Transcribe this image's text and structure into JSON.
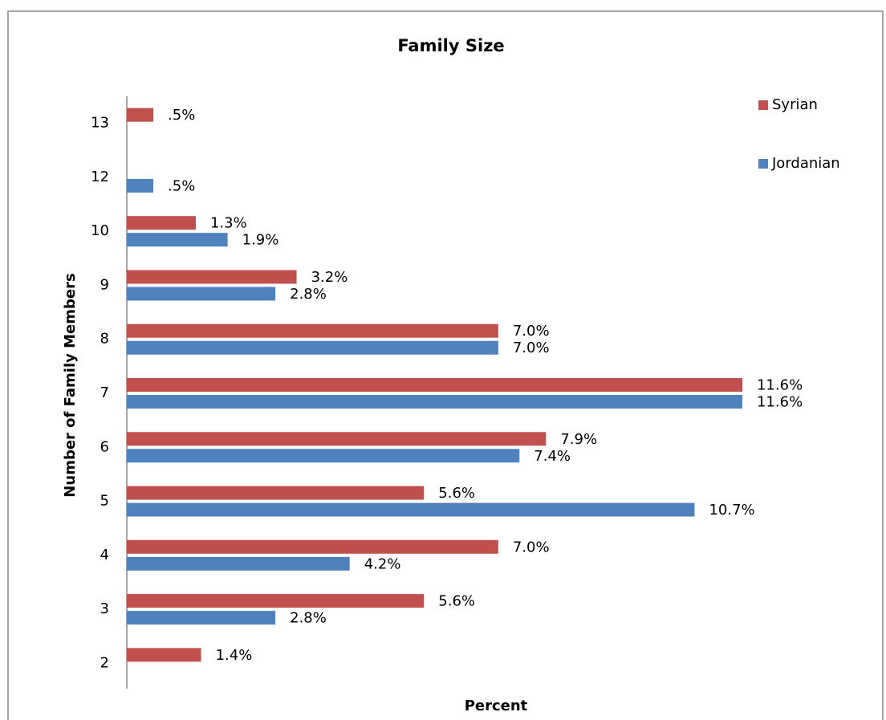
{
  "chart_data": {
    "type": "hbar",
    "title": "Family Size",
    "x_label": "Percent",
    "y_label": "Number of Family Members",
    "categories": [
      "2",
      "3",
      "4",
      "5",
      "6",
      "7",
      "8",
      "9",
      "10",
      "12",
      "13"
    ],
    "series": [
      {
        "name": "Syrian",
        "color": "#c0504d",
        "values": [
          1.4,
          5.6,
          7.0,
          5.6,
          7.9,
          11.6,
          7.0,
          3.2,
          1.3,
          null,
          0.5
        ],
        "value_labels": [
          "1.4%",
          "5.6%",
          "7.0%",
          "5.6%",
          "7.9%",
          "11.6%",
          "7.0%",
          "3.2%",
          "1.3%",
          null,
          ".5%"
        ]
      },
      {
        "name": "Jordanian",
        "color": "#4f81bd",
        "values": [
          null,
          2.8,
          4.2,
          10.7,
          7.4,
          11.6,
          7.0,
          2.8,
          1.9,
          0.5,
          null
        ],
        "value_labels": [
          null,
          "2.8%",
          "4.2%",
          "10.7%",
          "7.4%",
          "11.6%",
          "7.0%",
          "2.8%",
          "1.9%",
          ".5%",
          null
        ]
      }
    ],
    "xlim": [
      0,
      14
    ],
    "legend": "top-right"
  }
}
